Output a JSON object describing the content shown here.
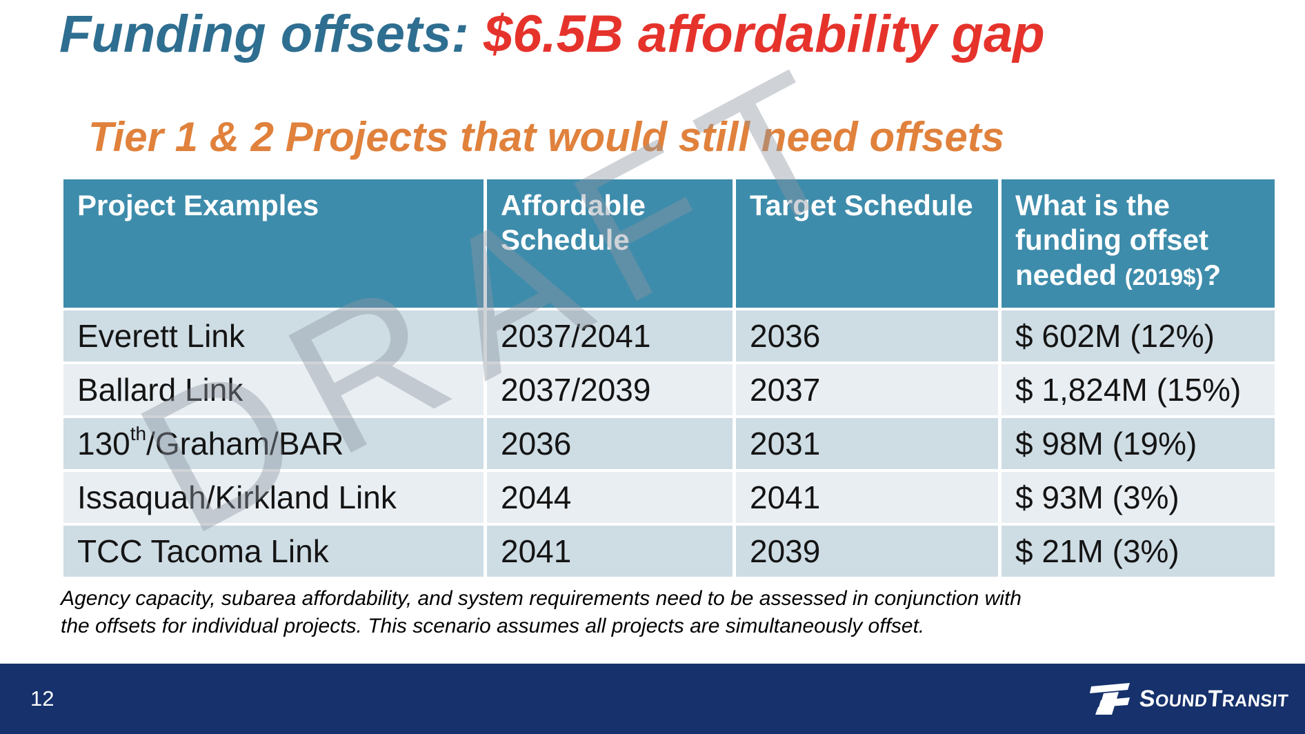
{
  "title": {
    "prefix": "Funding offsets: ",
    "highlight": "$6.5B affordability gap"
  },
  "subtitle": "Tier 1 & 2 Projects that would still need offsets",
  "watermark": "DRAFT",
  "table": {
    "headers": [
      {
        "label": "Project Examples"
      },
      {
        "label": "Affordable Schedule"
      },
      {
        "label": "Target Schedule"
      },
      {
        "label": "What is the funding offset needed",
        "small": "(2019$)",
        "tail": "?"
      }
    ],
    "rows": [
      {
        "project": [
          {
            "t": "Everett Link"
          }
        ],
        "affordable": "2037/2041",
        "target": "2036",
        "offset": "$ 602M (12%)"
      },
      {
        "project": [
          {
            "t": "Ballard Link"
          }
        ],
        "affordable": "2037/2039",
        "target": "2037",
        "offset": "$ 1,824M (15%)"
      },
      {
        "project": [
          {
            "t": "130"
          },
          {
            "t": "th",
            "sup": true
          },
          {
            "t": "/Graham/BAR"
          }
        ],
        "affordable": "2036",
        "target": "2031",
        "offset": "$ 98M (19%)"
      },
      {
        "project": [
          {
            "t": "Issaquah/Kirkland Link"
          }
        ],
        "affordable": "2044",
        "target": "2041",
        "offset": "$ 93M (3%)"
      },
      {
        "project": [
          {
            "t": "TCC Tacoma Link"
          }
        ],
        "affordable": "2041",
        "target": "2039",
        "offset": "$ 21M (3%)"
      }
    ]
  },
  "footnote": [
    "Agency capacity, subarea affordability, and system requirements need to be assessed in conjunction with",
    "the offsets for individual projects. This scenario assumes all projects are simultaneously offset."
  ],
  "footer": {
    "page_number": "12",
    "logo": {
      "parts": [
        {
          "t": "S",
          "big": true
        },
        {
          "t": "OUND"
        },
        {
          "t": "T",
          "big": true
        },
        {
          "t": "RANSIT"
        }
      ]
    }
  },
  "colors": {
    "title_blue": "#2E6E90",
    "title_red": "#E5332C",
    "subtitle_orange": "#E0813C",
    "header_teal": "#3E8CAB",
    "row_dark": "#CEDCE4",
    "row_light": "#E9EEF2",
    "footer_navy": "#16316B",
    "watermark_gray": "#8C96A1"
  }
}
